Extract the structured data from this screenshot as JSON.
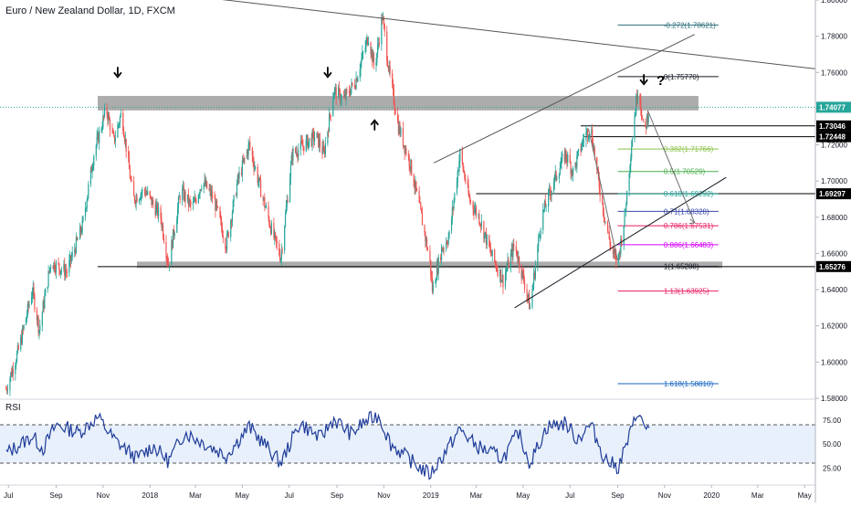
{
  "chart_data": {
    "type": "candlestick",
    "title": "Euro / New Zealand Dollar, 1D, FXCM",
    "colors": {
      "up": "#26a69a",
      "down": "#ef5350",
      "rsi": "#1f3c99",
      "rsi_band": "#e8f0fb",
      "zone": "#9e9e9e",
      "price_badge": "#000000",
      "text": "#131722",
      "axis_line": "#b2b5be"
    },
    "y_axis": {
      "min": 1.58,
      "max": 1.8,
      "ticks": [
        "1.80000",
        "1.78000",
        "1.76000",
        "1.74000",
        "1.72000",
        "1.70000",
        "1.68000",
        "1.66000",
        "1.64000",
        "1.62000",
        "1.60000",
        "1.58000"
      ]
    },
    "x_axis": {
      "start": "2017-06-20",
      "end": "2020-05-15",
      "ticks": [
        {
          "label": "Jul",
          "date": "2017-07-01"
        },
        {
          "label": "Sep",
          "date": "2017-09-01"
        },
        {
          "label": "Nov",
          "date": "2017-11-01"
        },
        {
          "label": "2018",
          "date": "2018-01-01"
        },
        {
          "label": "Mar",
          "date": "2018-03-01"
        },
        {
          "label": "May",
          "date": "2018-05-01"
        },
        {
          "label": "Jul",
          "date": "2018-07-01"
        },
        {
          "label": "Sep",
          "date": "2018-09-01"
        },
        {
          "label": "Nov",
          "date": "2018-11-01"
        },
        {
          "label": "2019",
          "date": "2019-01-01"
        },
        {
          "label": "Mar",
          "date": "2019-03-01"
        },
        {
          "label": "May",
          "date": "2019-05-01"
        },
        {
          "label": "Jul",
          "date": "2019-07-01"
        },
        {
          "label": "Sep",
          "date": "2019-09-01"
        },
        {
          "label": "Nov",
          "date": "2019-11-01"
        },
        {
          "label": "2020",
          "date": "2020-01-01"
        },
        {
          "label": "Mar",
          "date": "2020-03-01"
        },
        {
          "label": "May",
          "date": "2020-05-01"
        }
      ]
    },
    "price_path": [
      {
        "date": "2017-06-28",
        "close": 1.585
      },
      {
        "date": "2017-07-15",
        "close": 1.608
      },
      {
        "date": "2017-08-01",
        "close": 1.64
      },
      {
        "date": "2017-08-10",
        "close": 1.618
      },
      {
        "date": "2017-08-25",
        "close": 1.655
      },
      {
        "date": "2017-09-15",
        "close": 1.65
      },
      {
        "date": "2017-10-05",
        "close": 1.675
      },
      {
        "date": "2017-10-20",
        "close": 1.715
      },
      {
        "date": "2017-11-05",
        "close": 1.74
      },
      {
        "date": "2017-11-15",
        "close": 1.722
      },
      {
        "date": "2017-11-25",
        "close": 1.738
      },
      {
        "date": "2017-12-10",
        "close": 1.69
      },
      {
        "date": "2017-12-25",
        "close": 1.695
      },
      {
        "date": "2018-01-15",
        "close": 1.68
      },
      {
        "date": "2018-01-25",
        "close": 1.654
      },
      {
        "date": "2018-02-10",
        "close": 1.695
      },
      {
        "date": "2018-02-25",
        "close": 1.685
      },
      {
        "date": "2018-03-10",
        "close": 1.7
      },
      {
        "date": "2018-03-25",
        "close": 1.69
      },
      {
        "date": "2018-04-10",
        "close": 1.665
      },
      {
        "date": "2018-04-25",
        "close": 1.7
      },
      {
        "date": "2018-05-10",
        "close": 1.72
      },
      {
        "date": "2018-05-25",
        "close": 1.695
      },
      {
        "date": "2018-06-10",
        "close": 1.67
      },
      {
        "date": "2018-06-20",
        "close": 1.658
      },
      {
        "date": "2018-07-05",
        "close": 1.715
      },
      {
        "date": "2018-07-20",
        "close": 1.72
      },
      {
        "date": "2018-08-05",
        "close": 1.725
      },
      {
        "date": "2018-08-15",
        "close": 1.715
      },
      {
        "date": "2018-08-28",
        "close": 1.75
      },
      {
        "date": "2018-09-10",
        "close": 1.745
      },
      {
        "date": "2018-09-25",
        "close": 1.755
      },
      {
        "date": "2018-10-05",
        "close": 1.77
      },
      {
        "date": "2018-10-12",
        "close": 1.78
      },
      {
        "date": "2018-10-20",
        "close": 1.762
      },
      {
        "date": "2018-10-30",
        "close": 1.791
      },
      {
        "date": "2018-11-08",
        "close": 1.76
      },
      {
        "date": "2018-11-20",
        "close": 1.73
      },
      {
        "date": "2018-12-05",
        "close": 1.71
      },
      {
        "date": "2018-12-20",
        "close": 1.68
      },
      {
        "date": "2018-12-31",
        "close": 1.655
      },
      {
        "date": "2019-01-03",
        "close": 1.64
      },
      {
        "date": "2019-01-15",
        "close": 1.662
      },
      {
        "date": "2019-01-25",
        "close": 1.67
      },
      {
        "date": "2019-02-08",
        "close": 1.715
      },
      {
        "date": "2019-02-20",
        "close": 1.69
      },
      {
        "date": "2019-03-05",
        "close": 1.68
      },
      {
        "date": "2019-03-20",
        "close": 1.66
      },
      {
        "date": "2019-04-05",
        "close": 1.645
      },
      {
        "date": "2019-04-20",
        "close": 1.665
      },
      {
        "date": "2019-05-05",
        "close": 1.64
      },
      {
        "date": "2019-05-10",
        "close": 1.63
      },
      {
        "date": "2019-05-25",
        "close": 1.68
      },
      {
        "date": "2019-06-10",
        "close": 1.7
      },
      {
        "date": "2019-06-25",
        "close": 1.715
      },
      {
        "date": "2019-07-05",
        "close": 1.705
      },
      {
        "date": "2019-07-20",
        "close": 1.725
      },
      {
        "date": "2019-07-28",
        "close": 1.73
      },
      {
        "date": "2019-08-05",
        "close": 1.705
      },
      {
        "date": "2019-08-15",
        "close": 1.68
      },
      {
        "date": "2019-08-25",
        "close": 1.66
      },
      {
        "date": "2019-09-01",
        "close": 1.655
      },
      {
        "date": "2019-09-10",
        "close": 1.68
      },
      {
        "date": "2019-09-20",
        "close": 1.725
      },
      {
        "date": "2019-09-28",
        "close": 1.755
      },
      {
        "date": "2019-10-05",
        "close": 1.725
      },
      {
        "date": "2019-10-12",
        "close": 1.7407
      }
    ],
    "zones": [
      {
        "name": "resistance",
        "from": 1.739,
        "to": 1.747,
        "start": "2017-10-25",
        "end": "2019-12-15"
      },
      {
        "name": "support",
        "from": 1.652,
        "to": 1.6555,
        "start": "2017-12-15",
        "end": "2020-01-15"
      }
    ],
    "horizontal_levels": [
      {
        "value": 1.6527,
        "start": "2017-10-25",
        "end": "2020-05-15",
        "color": "#000000"
      },
      {
        "value": 1.7305,
        "start": "2019-07-15",
        "end": "2020-05-15",
        "color": "#000000"
      },
      {
        "value": 1.7245,
        "start": "2019-07-20",
        "end": "2020-05-15",
        "color": "#000000"
      },
      {
        "value": 1.693,
        "start": "2019-03-01",
        "end": "2020-05-15",
        "color": "#000000"
      }
    ],
    "fibonacci": {
      "start": "2019-09-01",
      "end": "2020-01-10",
      "levels": [
        {
          "ratio": "-0.272",
          "price": "1.78621",
          "value": 1.78621,
          "color": "#2a6c7a"
        },
        {
          "ratio": "0",
          "price": "1.75770",
          "value": 1.7577,
          "color": "#131722"
        },
        {
          "ratio": "0.382",
          "price": "1.71766",
          "value": 1.71766,
          "color": "#8bc34a"
        },
        {
          "ratio": "0.5",
          "price": "1.70529",
          "value": 1.70529,
          "color": "#4caf50"
        },
        {
          "ratio": "0.618",
          "price": "1.69292",
          "value": 1.69292,
          "color": "#26a69a"
        },
        {
          "ratio": "0.71",
          "price": "1.68328",
          "value": 1.68328,
          "color": "#3949ab"
        },
        {
          "ratio": "0.786",
          "price": "1.67531",
          "value": 1.67531,
          "color": "#e91e63"
        },
        {
          "ratio": "0.886",
          "price": "1.66483",
          "value": 1.66483,
          "color": "#d500f9"
        },
        {
          "ratio": "1",
          "price": "1.65288",
          "value": 1.65288,
          "color": "#131722"
        },
        {
          "ratio": "1.13",
          "price": "1.63925",
          "value": 1.63925,
          "color": "#e91e63"
        },
        {
          "ratio": "1.618",
          "price": "1.58810",
          "value": 1.5881,
          "color": "#1565c0"
        }
      ]
    },
    "trendlines": [
      {
        "name": "upper-trendline",
        "from": {
          "date": "2017-10-10",
          "price": 1.809
        },
        "to": {
          "date": "2020-05-15",
          "price": 1.762
        },
        "color": "#555555"
      },
      {
        "name": "channel-upper",
        "from": {
          "date": "2019-01-05",
          "price": 1.71
        },
        "to": {
          "date": "2019-12-10",
          "price": 1.781
        },
        "color": "#555555"
      },
      {
        "name": "channel-lower",
        "from": {
          "date": "2019-04-20",
          "price": 1.63
        },
        "to": {
          "date": "2020-01-20",
          "price": 1.702
        },
        "color": "#131722"
      },
      {
        "name": "forecast-arrow",
        "from": {
          "date": "2019-10-10",
          "price": 1.739
        },
        "to": {
          "date": "2019-12-10",
          "price": 1.677
        },
        "color": "#707070"
      },
      {
        "name": "down-swing",
        "from": {
          "date": "2019-07-25",
          "price": 1.729
        },
        "to": {
          "date": "2019-09-01",
          "price": 1.656
        },
        "color": "#707070"
      }
    ],
    "markers": [
      {
        "type": "arrow-down",
        "date": "2017-11-20",
        "price": 1.76
      },
      {
        "type": "arrow-down",
        "date": "2018-08-20",
        "price": 1.76
      },
      {
        "type": "arrow-up",
        "date": "2018-10-20",
        "price": 1.731
      },
      {
        "type": "arrow-down",
        "date": "2019-10-05",
        "price": 1.756
      },
      {
        "type": "question",
        "text": "?",
        "date": "2019-10-12",
        "price": 1.756
      }
    ],
    "price_badges": [
      {
        "label": "1.74077",
        "value": 1.74077
      },
      {
        "label": "1.73046",
        "value": 1.73046
      },
      {
        "label": "1.72448",
        "value": 1.72448
      },
      {
        "label": "1.69297",
        "value": 1.69297
      },
      {
        "label": "1.65276",
        "value": 1.65276
      }
    ],
    "rsi": {
      "label": "RSI",
      "y_ticks": [
        "75.00",
        "50.00",
        "25.00"
      ],
      "levels": [
        70,
        30
      ],
      "path": [
        {
          "date": "2017-06-28",
          "value": 40
        },
        {
          "date": "2017-08-01",
          "value": 58
        },
        {
          "date": "2017-08-15",
          "value": 45
        },
        {
          "date": "2017-09-01",
          "value": 70
        },
        {
          "date": "2017-10-01",
          "value": 62
        },
        {
          "date": "2017-10-25",
          "value": 78
        },
        {
          "date": "2017-11-15",
          "value": 55
        },
        {
          "date": "2017-12-15",
          "value": 35
        },
        {
          "date": "2018-01-05",
          "value": 48
        },
        {
          "date": "2018-01-25",
          "value": 32
        },
        {
          "date": "2018-02-15",
          "value": 62
        },
        {
          "date": "2018-03-10",
          "value": 52
        },
        {
          "date": "2018-04-10",
          "value": 38
        },
        {
          "date": "2018-05-10",
          "value": 68
        },
        {
          "date": "2018-06-20",
          "value": 30
        },
        {
          "date": "2018-07-15",
          "value": 72
        },
        {
          "date": "2018-08-10",
          "value": 56
        },
        {
          "date": "2018-08-28",
          "value": 76
        },
        {
          "date": "2018-09-20",
          "value": 60
        },
        {
          "date": "2018-10-05",
          "value": 72
        },
        {
          "date": "2018-10-25",
          "value": 80
        },
        {
          "date": "2018-11-10",
          "value": 50
        },
        {
          "date": "2018-12-10",
          "value": 30
        },
        {
          "date": "2018-12-31",
          "value": 18
        },
        {
          "date": "2019-01-10",
          "value": 30
        },
        {
          "date": "2019-02-08",
          "value": 65
        },
        {
          "date": "2019-03-01",
          "value": 48
        },
        {
          "date": "2019-04-05",
          "value": 35
        },
        {
          "date": "2019-04-25",
          "value": 62
        },
        {
          "date": "2019-05-10",
          "value": 30
        },
        {
          "date": "2019-06-01",
          "value": 68
        },
        {
          "date": "2019-06-25",
          "value": 72
        },
        {
          "date": "2019-07-10",
          "value": 55
        },
        {
          "date": "2019-07-28",
          "value": 70
        },
        {
          "date": "2019-08-15",
          "value": 35
        },
        {
          "date": "2019-09-01",
          "value": 25
        },
        {
          "date": "2019-09-15",
          "value": 55
        },
        {
          "date": "2019-09-28",
          "value": 86
        },
        {
          "date": "2019-10-05",
          "value": 65
        },
        {
          "date": "2019-10-12",
          "value": 70
        }
      ]
    }
  }
}
